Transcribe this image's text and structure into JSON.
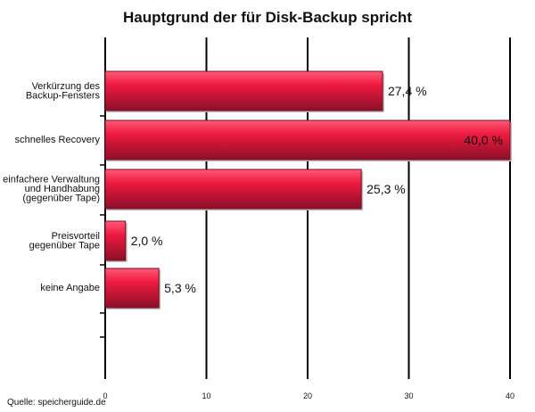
{
  "chart_data": {
    "type": "bar",
    "orientation": "horizontal",
    "title": "Hauptgrund der für Disk-Backup spricht",
    "categories": [
      "Verkürzung des\nBackup-Fensters",
      "schnelles Recovery",
      "einfachere Verwaltung\nund Handhabung\n(gegenüber Tape)",
      "Preisvorteil\ngegenüber Tape",
      "keine Angabe"
    ],
    "values": [
      27.4,
      40.0,
      25.3,
      2.0,
      5.3
    ],
    "value_labels": [
      "27,4 %",
      "40,0 %",
      "25,3 %",
      "2,0 %",
      "5,3 %"
    ],
    "xlim": [
      0,
      40
    ],
    "xticks": [
      "0",
      "10",
      "20",
      "30",
      "40"
    ],
    "xlabel": "",
    "ylabel": "",
    "grid": "vertical",
    "bar_color": "#e8163a"
  },
  "source": "Quelle: speicherguide.de"
}
